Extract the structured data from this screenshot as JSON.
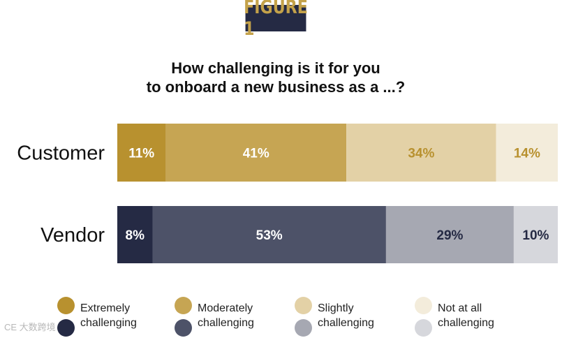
{
  "badge": {
    "text": "FIGURE 1"
  },
  "watermark": {
    "text": "CE 大数跨境"
  },
  "chart_data": {
    "type": "bar",
    "orientation": "horizontal",
    "stacked": true,
    "title": [
      "How challenging is it for you",
      "to onboard a new business as a ...?"
    ],
    "categories": [
      "Customer",
      "Vendor"
    ],
    "unit": "%",
    "xlim": [
      0,
      100
    ],
    "grid": false,
    "legend_position": "bottom",
    "series": [
      {
        "name": "Extremely challenging",
        "values": [
          11,
          8
        ]
      },
      {
        "name": "Moderately challenging",
        "values": [
          41,
          53
        ]
      },
      {
        "name": "Slightly challenging",
        "values": [
          34,
          29
        ]
      },
      {
        "name": "Not at all challenging",
        "values": [
          14,
          10
        ]
      }
    ],
    "colors": {
      "Customer": [
        "#b8912f",
        "#c6a553",
        "#e3d1a6",
        "#f3ecdb"
      ],
      "Vendor": [
        "#252a44",
        "#4d5268",
        "#a6a8b2",
        "#d6d7dc"
      ]
    },
    "label_colors": {
      "Customer": [
        "#ffffff",
        "#ffffff",
        "#b8912f",
        "#b8912f"
      ],
      "Vendor": [
        "#ffffff",
        "#ffffff",
        "#252a44",
        "#252a44"
      ]
    }
  },
  "legend": [
    {
      "label1": "Extremely",
      "label2": "challenging"
    },
    {
      "label1": "Moderately",
      "label2": "challenging"
    },
    {
      "label1": "Slightly",
      "label2": "challenging"
    },
    {
      "label1": "Not at all",
      "label2": "challenging"
    }
  ]
}
